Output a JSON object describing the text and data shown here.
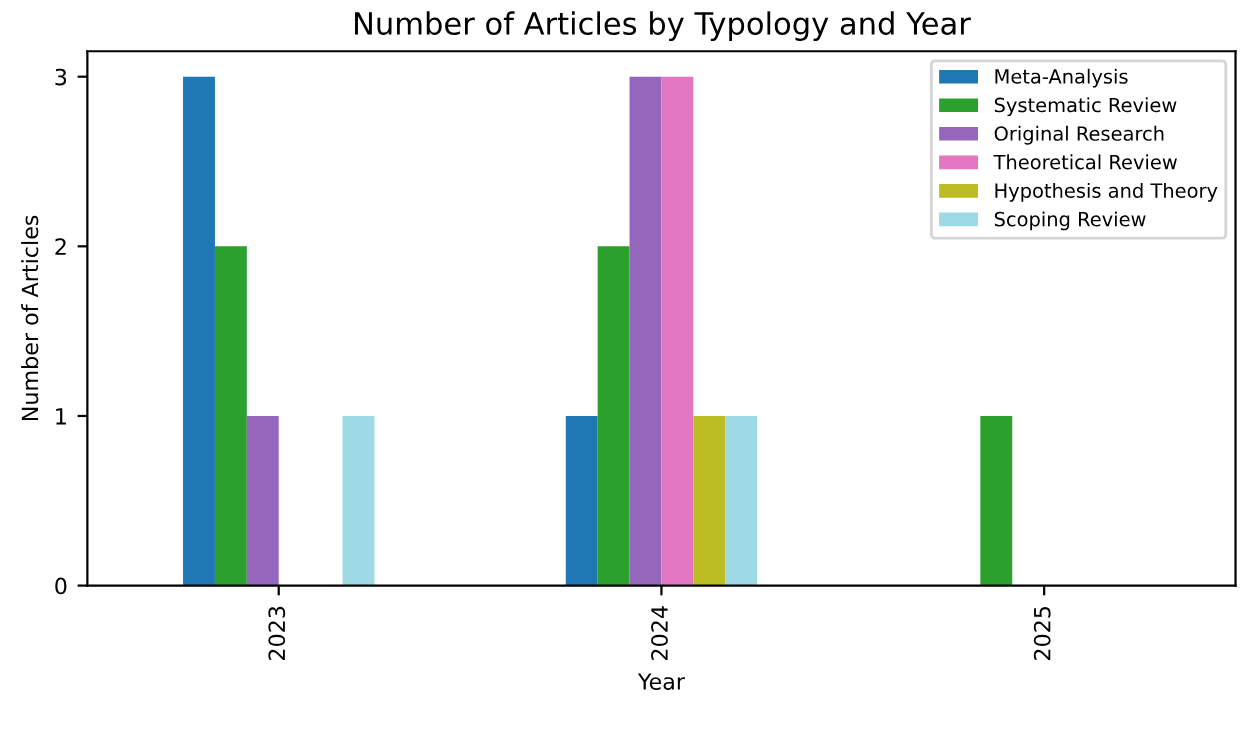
{
  "chart_data": {
    "type": "bar",
    "title": "Number of Articles by Typology and Year",
    "xlabel": "Year",
    "ylabel": "Number of Articles",
    "categories": [
      "2023",
      "2024",
      "2025"
    ],
    "series": [
      {
        "name": "Meta-Analysis",
        "color": "#1f77b4",
        "values": [
          3,
          1,
          0
        ]
      },
      {
        "name": "Systematic Review",
        "color": "#2ca02c",
        "values": [
          2,
          2,
          1
        ]
      },
      {
        "name": "Original Research",
        "color": "#9467bd",
        "values": [
          1,
          3,
          0
        ]
      },
      {
        "name": "Theoretical Review",
        "color": "#e377c2",
        "values": [
          0,
          3,
          0
        ]
      },
      {
        "name": "Hypothesis and Theory",
        "color": "#bcbd22",
        "values": [
          0,
          1,
          0
        ]
      },
      {
        "name": "Scoping Review",
        "color": "#9edae5",
        "values": [
          1,
          1,
          0
        ]
      }
    ],
    "ylim": [
      0,
      3.15
    ],
    "yticks": [
      0,
      1,
      2,
      3
    ],
    "grid": false,
    "legend": "top right"
  }
}
